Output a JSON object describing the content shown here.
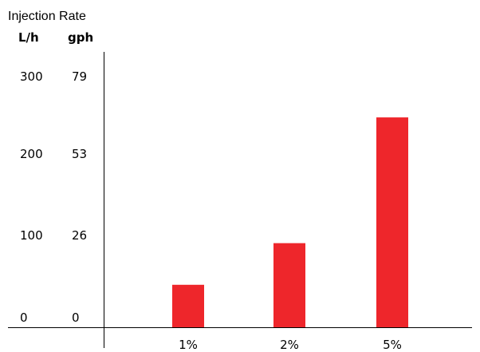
{
  "chart_data": {
    "type": "bar",
    "title": "Injection Rate",
    "units": {
      "primary": "L/h",
      "secondary": "gph"
    },
    "categories": [
      "1%",
      "2%",
      "5%"
    ],
    "values": [
      51,
      101,
      252
    ],
    "yticks_primary": [
      0,
      100,
      200,
      300
    ],
    "yticks_secondary": [
      0,
      26,
      53,
      79
    ],
    "ylim": [
      0,
      300
    ],
    "bar_color": "#ee262b",
    "grid": false,
    "legend": "none"
  }
}
